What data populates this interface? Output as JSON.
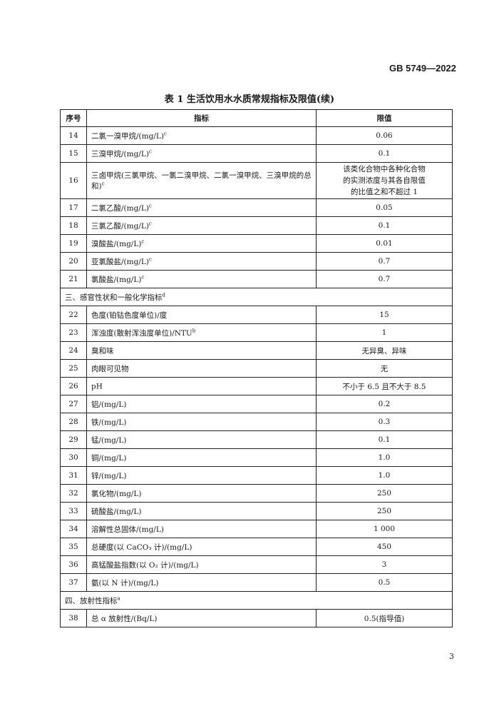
{
  "header": {
    "standard_no": "GB 5749—2022"
  },
  "table_title": "表 1  生活饮用水水质常规指标及限值(续)",
  "columns": [
    "序号",
    "指标",
    "限值"
  ],
  "rows": [
    {
      "type": "item",
      "no": "14",
      "name": "二氯一溴甲烷/(mg/L)",
      "sup": "c",
      "value": "0.06"
    },
    {
      "type": "item",
      "no": "15",
      "name": "三溴甲烷/(mg/L)",
      "sup": "c",
      "value": "0.1"
    },
    {
      "type": "item",
      "no": "16",
      "name": "三卤甲烷(三氯甲烷、一氯二溴甲烷、二氯一溴甲烷、三溴甲烷的总和)",
      "sup": "c",
      "value": "该类化合物中各种化合物的实测浓度与其各自限值的比值之和不超过 1",
      "tall": true
    },
    {
      "type": "item",
      "no": "17",
      "name": "二氯乙酸/(mg/L)",
      "sup": "c",
      "value": "0.05"
    },
    {
      "type": "item",
      "no": "18",
      "name": "三氯乙酸/(mg/L)",
      "sup": "c",
      "value": "0.1"
    },
    {
      "type": "item",
      "no": "19",
      "name": "溴酸盐/(mg/L)",
      "sup": "c",
      "value": "0.01"
    },
    {
      "type": "item",
      "no": "20",
      "name": "亚氯酸盐/(mg/L)",
      "sup": "c",
      "value": "0.7"
    },
    {
      "type": "item",
      "no": "21",
      "name": "氯酸盐/(mg/L)",
      "sup": "c",
      "value": "0.7"
    },
    {
      "type": "section",
      "name": "三、感官性状和一般化学指标",
      "sup": "d"
    },
    {
      "type": "item",
      "no": "22",
      "name": "色度(铂钴色度单位)/度",
      "sup": "",
      "value": "15"
    },
    {
      "type": "item",
      "no": "23",
      "name": "浑浊度(散射浑浊度单位)/NTU",
      "sup": "b",
      "value": "1"
    },
    {
      "type": "item",
      "no": "24",
      "name": "臭和味",
      "sup": "",
      "value": "无异臭、异味"
    },
    {
      "type": "item",
      "no": "25",
      "name": "肉眼可见物",
      "sup": "",
      "value": "无"
    },
    {
      "type": "item",
      "no": "26",
      "name": "pH",
      "sup": "",
      "value": "不小于 6.5 且不大于 8.5"
    },
    {
      "type": "item",
      "no": "27",
      "name": "铝/(mg/L)",
      "sup": "",
      "value": "0.2"
    },
    {
      "type": "item",
      "no": "28",
      "name": "铁/(mg/L)",
      "sup": "",
      "value": "0.3"
    },
    {
      "type": "item",
      "no": "29",
      "name": "锰/(mg/L)",
      "sup": "",
      "value": "0.1"
    },
    {
      "type": "item",
      "no": "30",
      "name": "铜/(mg/L)",
      "sup": "",
      "value": "1.0"
    },
    {
      "type": "item",
      "no": "31",
      "name": "锌/(mg/L)",
      "sup": "",
      "value": "1.0"
    },
    {
      "type": "item",
      "no": "32",
      "name": "氯化物/(mg/L)",
      "sup": "",
      "value": "250"
    },
    {
      "type": "item",
      "no": "33",
      "name": "硫酸盐/(mg/L)",
      "sup": "",
      "value": "250"
    },
    {
      "type": "item",
      "no": "34",
      "name": "溶解性总固体/(mg/L)",
      "sup": "",
      "value": "1 000"
    },
    {
      "type": "item",
      "no": "35",
      "name": "总硬度(以 CaCO₃ 计)/(mg/L)",
      "sup": "",
      "value": "450"
    },
    {
      "type": "item",
      "no": "36",
      "name": "高锰酸盐指数(以 O₂ 计)/(mg/L)",
      "sup": "",
      "value": "3"
    },
    {
      "type": "item",
      "no": "37",
      "name": "氨(以 N 计)/(mg/L)",
      "sup": "",
      "value": "0.5"
    },
    {
      "type": "section",
      "name": "四、放射性指标",
      "sup": "a"
    },
    {
      "type": "item",
      "no": "38",
      "name": "总 α 放射性/(Bq/L)",
      "sup": "",
      "value": "0.5(指导值)"
    }
  ],
  "page_number": "3"
}
